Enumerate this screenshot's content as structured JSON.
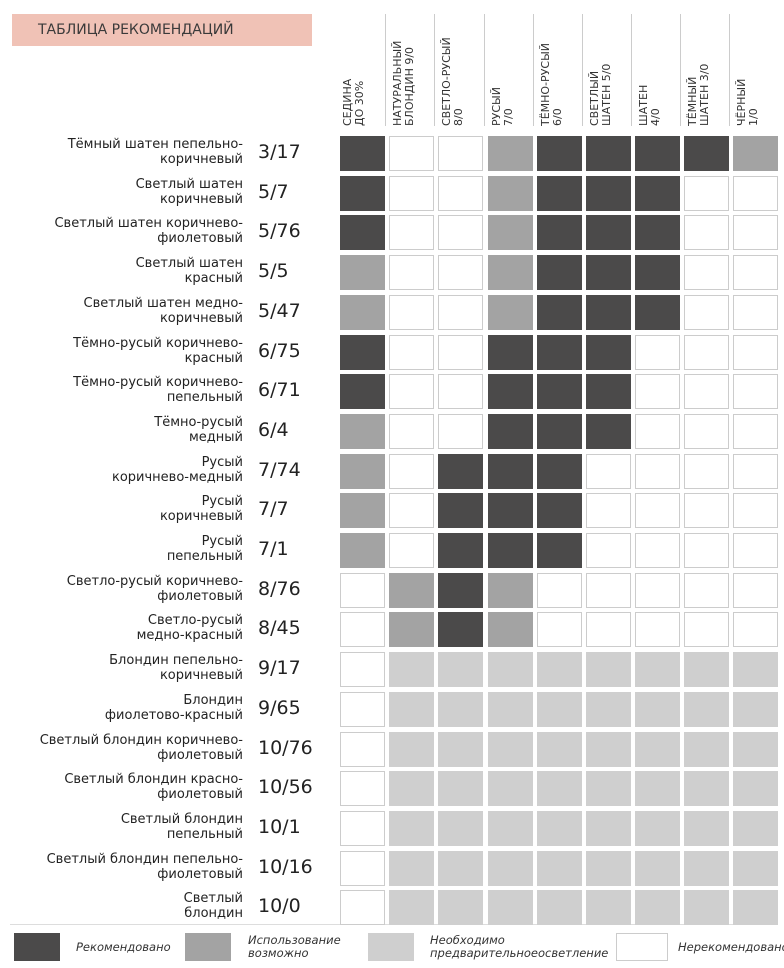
{
  "title": "ТАБЛИЦА РЕКОМЕНДАЦИЙ",
  "columns": [
    "СЕДИНА\nДО 30%",
    "НАТУРАЛЬНЫЙ\nБЛОНДИН 9/0",
    "СВЕТЛО-РУСЫЙ\n8/0",
    "РУСЫЙ\n7/0",
    "ТЁМНО-РУСЫЙ\n6/0",
    "СВЕТЛЫЙ\nШАТЕН 5/0",
    "ШАТЕН\n4/0",
    "ТЁМНЫЙ\nШАТЕН 3/0",
    "ЧЁРНЫЙ\n1/0"
  ],
  "colors": {
    "D": "#4b4a4a",
    "M": "#a3a3a3",
    "L": "#cfcfcf",
    "W": "#ffffff"
  },
  "rows": [
    {
      "name": "Тёмный шатен пепельно-\nкоричневый",
      "code": "3/17",
      "cells": "DWWMDDDDM"
    },
    {
      "name": "Светлый шатен\nкоричневый",
      "code": "5/7",
      "cells": "DWWMDDDWW"
    },
    {
      "name": "Светлый шатен коричнево-\nфиолетовый",
      "code": "5/76",
      "cells": "DWWMDDDWW"
    },
    {
      "name": "Светлый шатен\nкрасный",
      "code": "5/5",
      "cells": "MWWMDDDWW"
    },
    {
      "name": "Светлый шатен медно-\nкоричневый",
      "code": "5/47",
      "cells": "MWWMDDDWW"
    },
    {
      "name": "Тёмно-русый коричнево-\nкрасный",
      "code": "6/75",
      "cells": "DWWDDDWWW"
    },
    {
      "name": "Тёмно-русый коричнево-\nпепельный",
      "code": "6/71",
      "cells": "DWWDDDWWW"
    },
    {
      "name": "Тёмно-русый\nмедный",
      "code": "6/4",
      "cells": "MWWDDDWWW"
    },
    {
      "name": "Русый\nкоричнево-медный",
      "code": "7/74",
      "cells": "MWDDDWWWW"
    },
    {
      "name": "Русый\nкоричневый",
      "code": "7/7",
      "cells": "MWDDDWWWW"
    },
    {
      "name": "Русый\nпепельный",
      "code": "7/1",
      "cells": "MWDDDWWWW"
    },
    {
      "name": "Светло-русый коричнево-\nфиолетовый",
      "code": "8/76",
      "cells": "WMDMWWWWW"
    },
    {
      "name": "Светло-русый\nмедно-красный",
      "code": "8/45",
      "cells": "WMDMWWWWW"
    },
    {
      "name": "Блондин пепельно-\nкоричневый",
      "code": "9/17",
      "cells": "WLLLLLLLL"
    },
    {
      "name": "Блондин\nфиолетово-красный",
      "code": "9/65",
      "cells": "WLLLLLLLL"
    },
    {
      "name": "Светлый блондин коричнево-\nфиолетовый",
      "code": "10/76",
      "cells": "WLLLLLLLL"
    },
    {
      "name": "Светлый блондин красно-\nфиолетовый",
      "code": "10/56",
      "cells": "WLLLLLLLL"
    },
    {
      "name": "Светлый блондин\nпепельный",
      "code": "10/1",
      "cells": "WLLLLLLLL"
    },
    {
      "name": "Светлый блондин пепельно-\nфиолетовый",
      "code": "10/16",
      "cells": "WLLLLLLLL"
    },
    {
      "name": "Светлый\nблондин",
      "code": "10/0",
      "cells": "WLLLLLLLL"
    }
  ],
  "legend": [
    {
      "key": "D",
      "label": "Рекомендовано"
    },
    {
      "key": "M",
      "label": "Использование\nвозможно"
    },
    {
      "key": "L",
      "label": "Необходимо\nпредварительноеосветление"
    },
    {
      "key": "W",
      "label": "Нерекомендовано"
    }
  ]
}
